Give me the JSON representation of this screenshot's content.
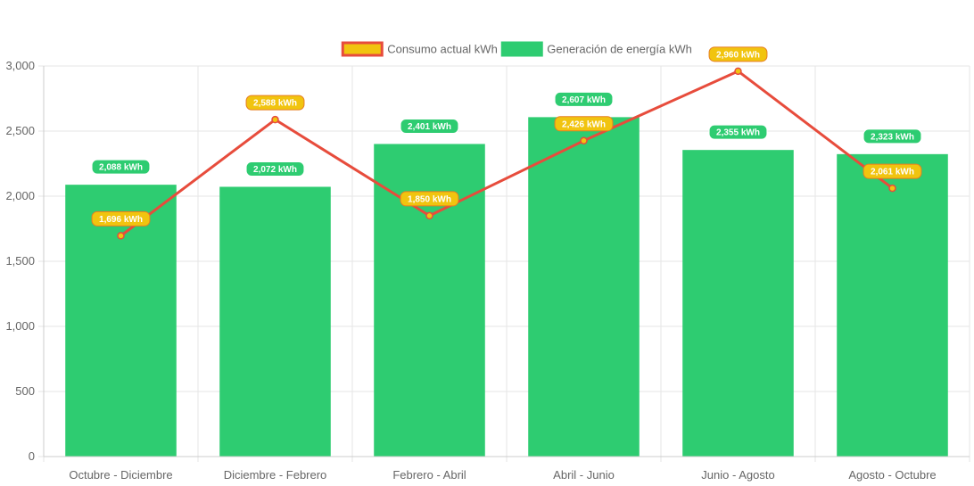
{
  "chart_data": {
    "type": "bar",
    "categories": [
      "Octubre - Diciembre",
      "Diciembre - Febrero",
      "Febrero - Abril",
      "Abril - Junio",
      "Junio - Agosto",
      "Agosto - Octubre"
    ],
    "series": [
      {
        "name": "Generación de energía kWh",
        "render": "bar",
        "values": [
          2088,
          2072,
          2401,
          2607,
          2355,
          2323
        ],
        "data_labels": [
          "2,088 kWh",
          "2,072 kWh",
          "2,401 kWh",
          "2,607 kWh",
          "2,355 kWh",
          "2,323 kWh"
        ],
        "color": "#2ecc71"
      },
      {
        "name": "Consumo actual kWh",
        "render": "line",
        "values": [
          1696,
          2588,
          1850,
          2426,
          2960,
          2061
        ],
        "data_labels": [
          "1,696 kWh",
          "2,588 kWh",
          "1,850 kWh",
          "2,426 kWh",
          "2,960 kWh",
          "2,061 kWh"
        ],
        "color": "#e74c3c",
        "point_color": "#f1c40f"
      }
    ],
    "legend": [
      {
        "label": "Consumo actual kWh",
        "fill": "#f1c40f",
        "stroke": "#e74c3c"
      },
      {
        "label": "Generación de energía kWh",
        "fill": "#2ecc71",
        "stroke": "#2ecc71"
      }
    ],
    "legend_position": "top",
    "ylim": [
      0,
      3000
    ],
    "yticks": [
      0,
      500,
      1000,
      1500,
      2000,
      2500,
      3000
    ],
    "ytick_labels": [
      "0",
      "500",
      "1,000",
      "1,500",
      "2,000",
      "2,500",
      "3,000"
    ],
    "grid": true,
    "title": "",
    "xlabel": "",
    "ylabel": ""
  }
}
